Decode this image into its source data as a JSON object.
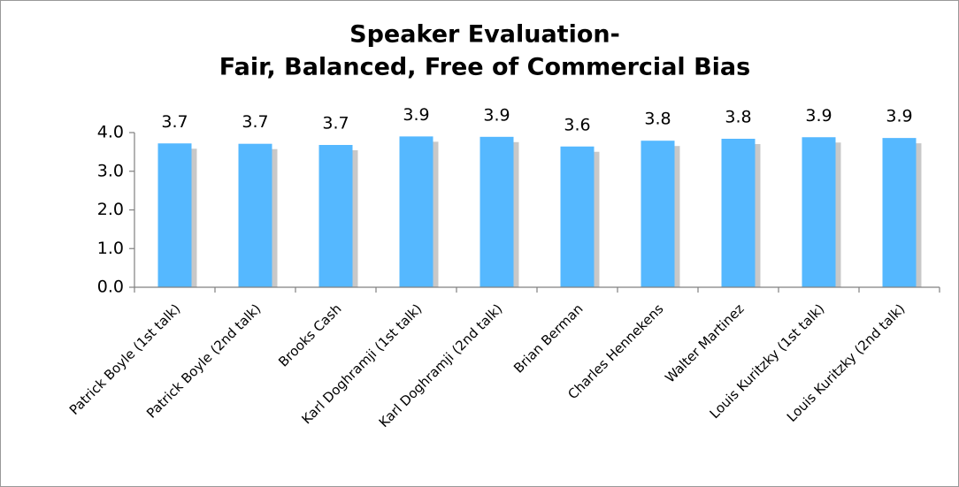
{
  "chart_data": {
    "type": "bar",
    "title": [
      "Speaker Evaluation-",
      "Fair, Balanced, Free of Commercial Bias"
    ],
    "categories": [
      "Patrick Boyle (1st talk)",
      "Patrick Boyle (2nd talk)",
      "Brooks Cash",
      "Karl Doghramji (1st talk)",
      "Karl Doghramji (2nd talk)",
      "Brian Berman",
      "Charles Hennekens",
      "Walter Martinez",
      "Louis Kuritzky (1st talk)",
      "Louis Kuritzky (2nd talk)"
    ],
    "values": [
      3.72,
      3.71,
      3.68,
      3.9,
      3.89,
      3.64,
      3.79,
      3.84,
      3.88,
      3.86
    ],
    "value_labels": [
      "3.7",
      "3.7",
      "3.7",
      "3.9",
      "3.9",
      "3.6",
      "3.8",
      "3.8",
      "3.9",
      "3.9"
    ],
    "color": "#55b8ff",
    "shadow_color": "#c8c8c8",
    "ylim": [
      0,
      4
    ],
    "yticks": [
      {
        "value": 0,
        "label": "0.0"
      },
      {
        "value": 1,
        "label": "1.0"
      },
      {
        "value": 2,
        "label": "2.0"
      },
      {
        "value": 3,
        "label": "3.0"
      },
      {
        "value": 4,
        "label": "4.0"
      }
    ],
    "grid": false
  }
}
